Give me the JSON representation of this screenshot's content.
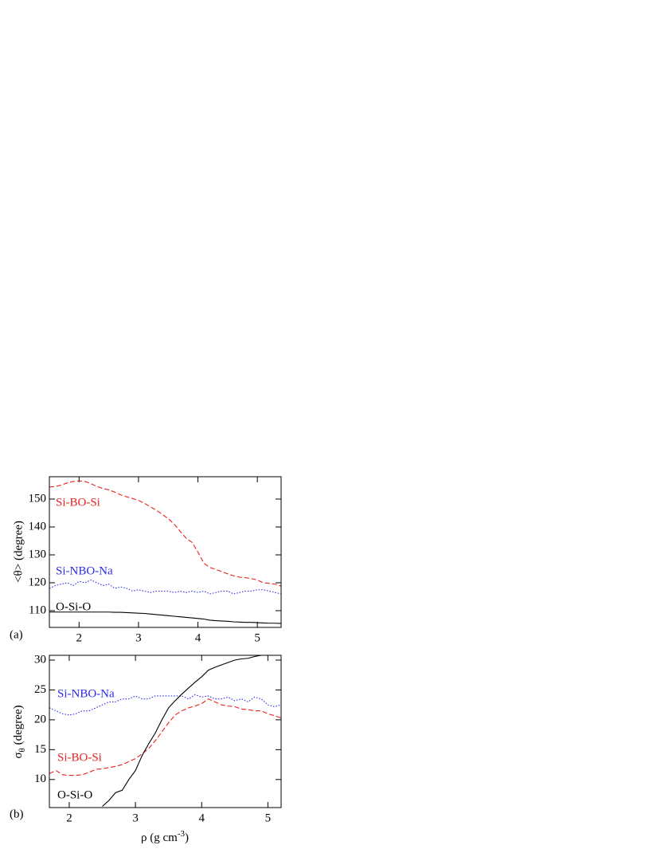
{
  "chart_data": [
    {
      "type": "line",
      "panel_label": "(a)",
      "ylabel": "<θ> (degree)",
      "x": [
        1.5,
        1.6,
        1.7,
        1.8,
        1.9,
        2.0,
        2.1,
        2.2,
        2.3,
        2.4,
        2.5,
        2.6,
        2.7,
        2.8,
        2.9,
        3.0,
        3.1,
        3.2,
        3.3,
        3.4,
        3.5,
        3.6,
        3.7,
        3.8,
        3.9,
        4.0,
        4.1,
        4.2,
        4.3,
        4.4,
        4.5,
        4.6,
        4.7,
        4.8,
        4.9,
        5.0,
        5.1,
        5.2,
        5.3,
        5.4
      ],
      "xlim": [
        1.5,
        5.4
      ],
      "xticks": [
        2,
        3,
        4,
        5
      ],
      "ylim": [
        104,
        158
      ],
      "yticks": [
        110,
        120,
        130,
        140,
        150
      ],
      "series": [
        {
          "name": "Si-BO-Si",
          "color": "#e8221e",
          "dash": "6,3",
          "values": [
            154.3,
            154.5,
            155,
            155.8,
            156.3,
            156.5,
            156.3,
            155.5,
            154.5,
            153.8,
            153.3,
            152.5,
            151.5,
            150.8,
            150.2,
            149.5,
            148.5,
            147.2,
            146,
            144.5,
            143,
            141,
            138.5,
            136,
            134.5,
            131,
            127,
            125.5,
            124.8,
            124,
            123.2,
            122.5,
            122,
            121.8,
            121.5,
            121,
            120,
            119.8,
            119.5,
            118.8
          ]
        },
        {
          "name": "Si-NBO-Na",
          "color": "#2b2bf0",
          "dash": "1.5,2",
          "values": [
            118,
            119,
            119.5,
            120,
            119,
            120.5,
            120,
            121,
            120,
            119,
            119.5,
            118,
            118.5,
            118,
            117,
            117.5,
            117,
            116.5,
            117,
            117,
            117,
            116.5,
            117,
            116.5,
            117,
            116.5,
            117,
            116,
            116.5,
            117,
            117,
            116,
            116.5,
            117,
            117,
            117.5,
            117.5,
            117,
            116.5,
            116
          ]
        },
        {
          "name": "O-Si-O",
          "color": "#000000",
          "dash": "none",
          "values": [
            109.5,
            109.5,
            109.5,
            109.5,
            109.5,
            109.5,
            109.5,
            109.5,
            109.5,
            109.5,
            109.5,
            109.4,
            109.4,
            109.3,
            109.2,
            109.1,
            109,
            108.8,
            108.6,
            108.4,
            108.2,
            108,
            107.8,
            107.6,
            107.4,
            107.2,
            107,
            106.6,
            106.4,
            106.3,
            106.2,
            106,
            105.9,
            105.8,
            105.8,
            105.7,
            105.6,
            105.5,
            105.5,
            105.4
          ]
        }
      ]
    },
    {
      "type": "line",
      "panel_label": "(b)",
      "ylabel": "σ",
      "ylabel_sub": "θ",
      "ylabel_rest": " (degree)",
      "xlabel": "ρ (g cm",
      "xlabel_sup": "-3",
      "xlabel_end": ")",
      "x": [
        1.7,
        1.8,
        1.9,
        2.0,
        2.1,
        2.2,
        2.3,
        2.4,
        2.5,
        2.6,
        2.7,
        2.8,
        2.9,
        3.0,
        3.1,
        3.2,
        3.3,
        3.4,
        3.5,
        3.6,
        3.7,
        3.8,
        3.9,
        4.0,
        4.1,
        4.2,
        4.3,
        4.4,
        4.5,
        4.6,
        4.7,
        4.8,
        4.9,
        5.0,
        5.1,
        5.2
      ],
      "xlim": [
        1.7,
        5.2
      ],
      "xticks": [
        2,
        3,
        4,
        5
      ],
      "ylim": [
        5.3,
        30.8
      ],
      "yticks": [
        10,
        15,
        20,
        25,
        30
      ],
      "series": [
        {
          "name": "Si-NBO-Na",
          "color": "#2b2bf0",
          "dash": "1.5,2",
          "values": [
            22,
            21.5,
            21,
            20.8,
            21,
            21.5,
            21.5,
            22,
            22.5,
            23,
            23,
            23.5,
            23.5,
            24,
            23.5,
            23.5,
            24,
            24,
            24,
            24,
            24,
            23.5,
            24.2,
            23.8,
            24,
            23.5,
            23.5,
            23.8,
            23.2,
            23.5,
            23,
            23.8,
            23.5,
            22.5,
            22.2,
            22.5
          ]
        },
        {
          "name": "Si-BO-Si",
          "color": "#e8221e",
          "dash": "6,3",
          "values": [
            11,
            11.5,
            10.8,
            10.7,
            10.7,
            10.8,
            11.2,
            11.7,
            11.8,
            12,
            12.2,
            12.5,
            13,
            13.5,
            14.3,
            15.2,
            16.5,
            18,
            19.5,
            20.8,
            21.5,
            22,
            22.3,
            22.7,
            23.5,
            23,
            22.5,
            22.3,
            22.2,
            21.8,
            21.7,
            21.5,
            21.5,
            21,
            20.7,
            20.3
          ]
        },
        {
          "name": "O-Si-O",
          "color": "#000000",
          "dash": "none",
          "values": [
            null,
            null,
            null,
            null,
            null,
            null,
            null,
            null,
            5.5,
            6.5,
            7.8,
            8.2,
            10,
            11.5,
            14,
            16,
            17.8,
            20,
            22,
            23.2,
            24.3,
            25.3,
            26.3,
            27.2,
            28.3,
            28.8,
            29.2,
            29.6,
            30,
            30.2,
            30.3,
            30.6,
            30.8,
            30.8,
            30.8,
            30.8
          ]
        }
      ]
    }
  ]
}
